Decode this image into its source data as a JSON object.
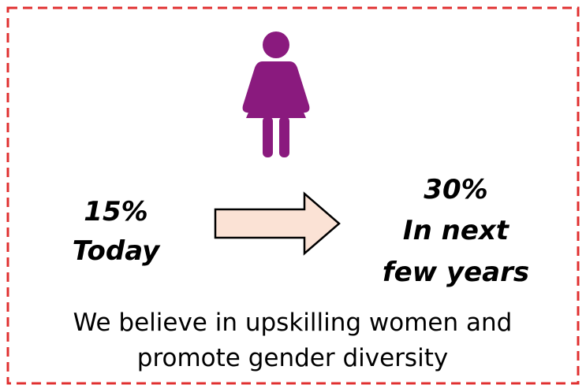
{
  "before": {
    "value": "15%",
    "label": "Today"
  },
  "after": {
    "value": "30%",
    "label_lines": [
      "In next",
      "few years"
    ]
  },
  "message_lines": [
    "We believe in upskilling women and",
    "promote gender diversity"
  ]
}
